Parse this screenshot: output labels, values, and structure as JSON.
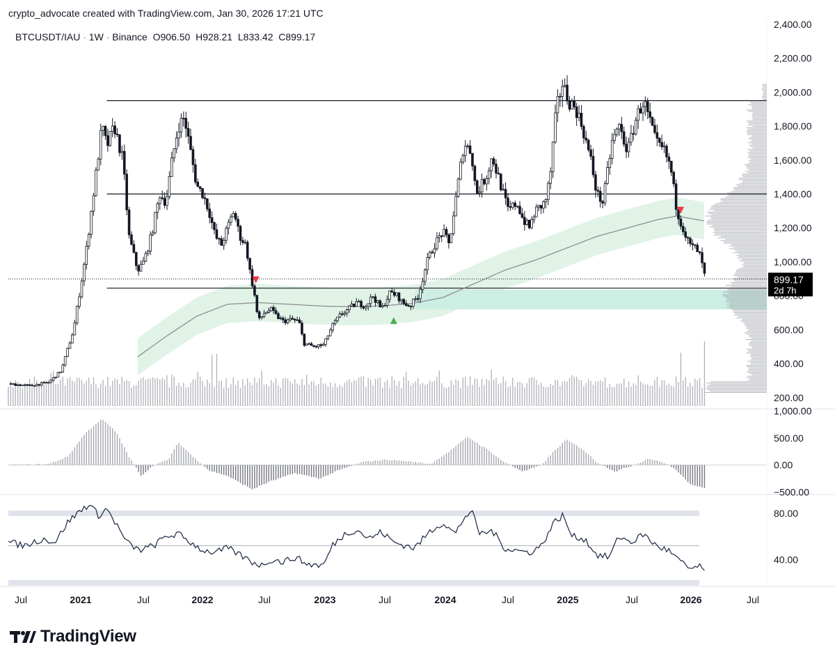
{
  "header": {
    "attribution": "crypto_advocate created with TradingView.com, Jan 30, 2026 17:21 UTC"
  },
  "legend": {
    "symbol": "BTCUSDT/IAU",
    "interval": "1W",
    "exchange": "Binance",
    "open_label": "O",
    "open": "906.50",
    "high_label": "H",
    "high": "928.21",
    "low_label": "L",
    "low": "833.42",
    "close_label": "C",
    "close": "899.17"
  },
  "last_price_tag": {
    "price": "899.17",
    "countdown": "2d 7h",
    "value": 899.17,
    "bg": "#000000"
  },
  "brand": {
    "name": "TradingView"
  },
  "colors": {
    "candle": "#131722",
    "band_fill": "#e1f3e7",
    "zone_fill": "#cdeee3",
    "ma_line": "#8d8f93",
    "rsi_line": "#17233f",
    "grid_band": "#e0e3eb",
    "signal_up": "#26a69a",
    "signal_down": "#f23645"
  },
  "chart_data": [
    {
      "type": "candlestick",
      "title": "BTCUSDT/IAU · 1W · Binance",
      "x_tick_labels": [
        "Jul",
        "2021",
        "Jul",
        "2022",
        "Jul",
        "2023",
        "Jul",
        "2024",
        "Jul",
        "2025",
        "Jul",
        "2026",
        "Jul"
      ],
      "y_tick_labels": [
        "2,400.00",
        "2,200.00",
        "2,000.00",
        "1,800.00",
        "1,600.00",
        "1,400.00",
        "1,200.00",
        "1,000.00",
        "800.00",
        "600.00",
        "400.00",
        "200.00"
      ],
      "y_ticks": [
        2400,
        2200,
        2000,
        1800,
        1600,
        1400,
        1200,
        1000,
        800,
        600,
        400,
        200
      ],
      "ylim": [
        150,
        2420
      ],
      "xlim": [
        2020.42,
        2026.58
      ],
      "last_date": 2026.08,
      "horizontal_levels": [
        1950,
        1400,
        845
      ],
      "support_zone": [
        720,
        835
      ],
      "price_path_keypoints": [
        [
          2020.42,
          280
        ],
        [
          2020.6,
          270
        ],
        [
          2020.75,
          290
        ],
        [
          2020.85,
          360
        ],
        [
          2020.95,
          600
        ],
        [
          2021.05,
          1050
        ],
        [
          2021.12,
          1450
        ],
        [
          2021.18,
          1800
        ],
        [
          2021.22,
          1680
        ],
        [
          2021.28,
          1800
        ],
        [
          2021.35,
          1600
        ],
        [
          2021.4,
          1150
        ],
        [
          2021.47,
          950
        ],
        [
          2021.52,
          1000
        ],
        [
          2021.58,
          1150
        ],
        [
          2021.65,
          1400
        ],
        [
          2021.7,
          1350
        ],
        [
          2021.75,
          1600
        ],
        [
          2021.8,
          1800
        ],
        [
          2021.85,
          1850
        ],
        [
          2021.9,
          1650
        ],
        [
          2021.95,
          1450
        ],
        [
          2022.0,
          1400
        ],
        [
          2022.05,
          1300
        ],
        [
          2022.1,
          1150
        ],
        [
          2022.15,
          1100
        ],
        [
          2022.2,
          1200
        ],
        [
          2022.25,
          1300
        ],
        [
          2022.3,
          1150
        ],
        [
          2022.35,
          1100
        ],
        [
          2022.38,
          950
        ],
        [
          2022.42,
          800
        ],
        [
          2022.45,
          650
        ],
        [
          2022.5,
          700
        ],
        [
          2022.55,
          720
        ],
        [
          2022.6,
          680
        ],
        [
          2022.65,
          650
        ],
        [
          2022.72,
          660
        ],
        [
          2022.78,
          650
        ],
        [
          2022.82,
          520
        ],
        [
          2022.9,
          500
        ],
        [
          2022.98,
          510
        ],
        [
          2023.05,
          620
        ],
        [
          2023.12,
          690
        ],
        [
          2023.18,
          720
        ],
        [
          2023.25,
          760
        ],
        [
          2023.32,
          740
        ],
        [
          2023.38,
          800
        ],
        [
          2023.45,
          720
        ],
        [
          2023.52,
          820
        ],
        [
          2023.58,
          800
        ],
        [
          2023.62,
          760
        ],
        [
          2023.68,
          740
        ],
        [
          2023.75,
          800
        ],
        [
          2023.82,
          1000
        ],
        [
          2023.88,
          1100
        ],
        [
          2023.95,
          1180
        ],
        [
          2024.0,
          1100
        ],
        [
          2024.05,
          1350
        ],
        [
          2024.12,
          1700
        ],
        [
          2024.18,
          1650
        ],
        [
          2024.22,
          1400
        ],
        [
          2024.3,
          1500
        ],
        [
          2024.35,
          1620
        ],
        [
          2024.42,
          1450
        ],
        [
          2024.48,
          1300
        ],
        [
          2024.55,
          1350
        ],
        [
          2024.6,
          1250
        ],
        [
          2024.65,
          1200
        ],
        [
          2024.7,
          1300
        ],
        [
          2024.78,
          1350
        ],
        [
          2024.82,
          1500
        ],
        [
          2024.87,
          1900
        ],
        [
          2024.92,
          2050
        ],
        [
          2024.97,
          1950
        ],
        [
          2025.03,
          1900
        ],
        [
          2025.08,
          1800
        ],
        [
          2025.15,
          1600
        ],
        [
          2025.2,
          1400
        ],
        [
          2025.25,
          1350
        ],
        [
          2025.32,
          1700
        ],
        [
          2025.38,
          1800
        ],
        [
          2025.45,
          1650
        ],
        [
          2025.52,
          1850
        ],
        [
          2025.58,
          1950
        ],
        [
          2025.62,
          1850
        ],
        [
          2025.68,
          1700
        ],
        [
          2025.75,
          1650
        ],
        [
          2025.8,
          1550
        ],
        [
          2025.85,
          1300
        ],
        [
          2025.9,
          1200
        ],
        [
          2025.95,
          1100
        ],
        [
          2026.0,
          1080
        ],
        [
          2026.03,
          1050
        ],
        [
          2026.05,
          1000
        ],
        [
          2026.08,
          899
        ]
      ],
      "moving_average": [
        [
          2021.47,
          440
        ],
        [
          2021.7,
          560
        ],
        [
          2021.95,
          680
        ],
        [
          2022.2,
          750
        ],
        [
          2022.45,
          760
        ],
        [
          2022.7,
          750
        ],
        [
          2022.95,
          740
        ],
        [
          2023.2,
          735
        ],
        [
          2023.45,
          740
        ],
        [
          2023.7,
          755
        ],
        [
          2023.95,
          790
        ],
        [
          2024.2,
          870
        ],
        [
          2024.45,
          950
        ],
        [
          2024.7,
          1010
        ],
        [
          2024.95,
          1080
        ],
        [
          2025.2,
          1150
        ],
        [
          2025.45,
          1200
        ],
        [
          2025.7,
          1250
        ],
        [
          2025.85,
          1270
        ],
        [
          2026.08,
          1240
        ]
      ],
      "band_half_width": 110,
      "band_start": 2021.47,
      "signals": [
        {
          "kind": "down",
          "x": 2022.43,
          "y": 890
        },
        {
          "kind": "up",
          "x": 2023.55,
          "y": 650
        },
        {
          "kind": "down",
          "x": 2025.88,
          "y": 1300
        }
      ]
    },
    {
      "type": "bar",
      "title": "Volume",
      "note": "volume histogram drawn in the main pane bottom, relative heights 0-1",
      "peaks": [
        [
          2022.08,
          0.75
        ],
        [
          2022.12,
          0.95
        ],
        [
          2024.2,
          0.22
        ],
        [
          2025.88,
          0.55
        ],
        [
          2026.08,
          0.95
        ]
      ],
      "base": 0.18
    },
    {
      "type": "bar",
      "title": "Oscillator",
      "y_tick_labels": [
        "1,000.00",
        "500.00",
        "0.00",
        "−500.00"
      ],
      "y_ticks": [
        1000,
        500,
        0,
        -500
      ],
      "ylim": [
        -520,
        1000
      ],
      "keypoints": [
        [
          2020.42,
          0
        ],
        [
          2020.75,
          20
        ],
        [
          2020.9,
          150
        ],
        [
          2021.05,
          600
        ],
        [
          2021.18,
          850
        ],
        [
          2021.3,
          600
        ],
        [
          2021.4,
          150
        ],
        [
          2021.5,
          -200
        ],
        [
          2021.6,
          0
        ],
        [
          2021.72,
          100
        ],
        [
          2021.8,
          420
        ],
        [
          2021.92,
          150
        ],
        [
          2022.05,
          -100
        ],
        [
          2022.2,
          -200
        ],
        [
          2022.4,
          -450
        ],
        [
          2022.55,
          -300
        ],
        [
          2022.75,
          -150
        ],
        [
          2022.95,
          -250
        ],
        [
          2023.1,
          -100
        ],
        [
          2023.3,
          60
        ],
        [
          2023.5,
          100
        ],
        [
          2023.7,
          60
        ],
        [
          2023.85,
          20
        ],
        [
          2024.0,
          250
        ],
        [
          2024.15,
          520
        ],
        [
          2024.3,
          300
        ],
        [
          2024.45,
          50
        ],
        [
          2024.6,
          -120
        ],
        [
          2024.75,
          0
        ],
        [
          2024.85,
          250
        ],
        [
          2024.95,
          470
        ],
        [
          2025.08,
          300
        ],
        [
          2025.2,
          50
        ],
        [
          2025.35,
          -120
        ],
        [
          2025.5,
          0
        ],
        [
          2025.62,
          120
        ],
        [
          2025.75,
          40
        ],
        [
          2025.85,
          -100
        ],
        [
          2025.95,
          -350
        ],
        [
          2026.08,
          -420
        ]
      ]
    },
    {
      "type": "line",
      "title": "RSI",
      "y_tick_labels": [
        "80.00",
        "40.00"
      ],
      "y_ticks": [
        80,
        40
      ],
      "ylim": [
        18,
        95
      ],
      "bands": [
        80,
        52,
        20
      ],
      "keypoints": [
        [
          2020.42,
          55
        ],
        [
          2020.55,
          52
        ],
        [
          2020.7,
          58
        ],
        [
          2020.8,
          55
        ],
        [
          2020.9,
          72
        ],
        [
          2021.0,
          82
        ],
        [
          2021.08,
          88
        ],
        [
          2021.15,
          78
        ],
        [
          2021.22,
          84
        ],
        [
          2021.3,
          70
        ],
        [
          2021.38,
          55
        ],
        [
          2021.48,
          48
        ],
        [
          2021.6,
          52
        ],
        [
          2021.7,
          60
        ],
        [
          2021.8,
          62
        ],
        [
          2021.9,
          55
        ],
        [
          2022.0,
          48
        ],
        [
          2022.1,
          46
        ],
        [
          2022.2,
          50
        ],
        [
          2022.3,
          44
        ],
        [
          2022.4,
          38
        ],
        [
          2022.48,
          35
        ],
        [
          2022.55,
          40
        ],
        [
          2022.65,
          38
        ],
        [
          2022.75,
          42
        ],
        [
          2022.85,
          36
        ],
        [
          2022.98,
          35
        ],
        [
          2023.05,
          52
        ],
        [
          2023.15,
          62
        ],
        [
          2023.25,
          66
        ],
        [
          2023.35,
          58
        ],
        [
          2023.45,
          64
        ],
        [
          2023.55,
          55
        ],
        [
          2023.65,
          52
        ],
        [
          2023.72,
          50
        ],
        [
          2023.85,
          65
        ],
        [
          2023.95,
          72
        ],
        [
          2024.05,
          62
        ],
        [
          2024.12,
          76
        ],
        [
          2024.18,
          82
        ],
        [
          2024.25,
          62
        ],
        [
          2024.35,
          65
        ],
        [
          2024.45,
          50
        ],
        [
          2024.55,
          48
        ],
        [
          2024.65,
          46
        ],
        [
          2024.75,
          52
        ],
        [
          2024.85,
          72
        ],
        [
          2024.92,
          78
        ],
        [
          2025.0,
          60
        ],
        [
          2025.1,
          58
        ],
        [
          2025.2,
          44
        ],
        [
          2025.3,
          42
        ],
        [
          2025.38,
          60
        ],
        [
          2025.48,
          55
        ],
        [
          2025.58,
          62
        ],
        [
          2025.68,
          52
        ],
        [
          2025.78,
          48
        ],
        [
          2025.88,
          38
        ],
        [
          2025.95,
          32
        ],
        [
          2026.03,
          34
        ],
        [
          2026.08,
          29
        ]
      ]
    }
  ]
}
